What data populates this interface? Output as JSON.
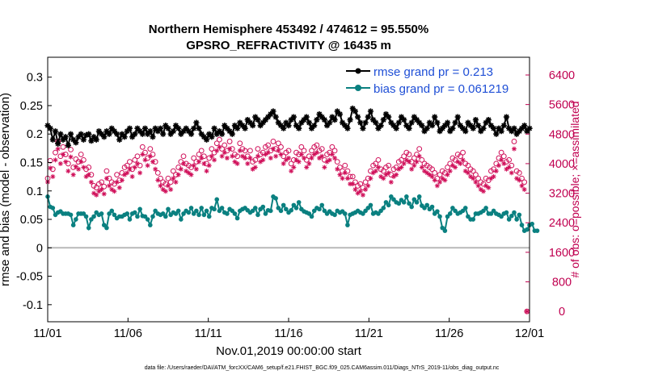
{
  "chart_data": {
    "type": "line",
    "title": "Northern Hemisphere 453492 / 474612 = 95.550%",
    "subtitle": "GPSRO_REFRACTIVITY @ 16435 m",
    "xlabel": "Nov.01,2019 00:00:00 start",
    "ylabel": "rmse and bias (model - observation)",
    "y2label": "# of obs: o=possible; ×=assimilated",
    "footnote": "data file: /Users/raeder/DAI/ATM_forcXX/CAM6_setup/f.e21.FHIST_BGC.f09_025.CAM6assim.011/Diags_NTrS_2019-11/obs_diag_output.nc",
    "xlim": [
      0,
      30
    ],
    "ylim": [
      -0.13,
      0.335
    ],
    "y2lim": [
      -280,
      6880
    ],
    "x_tick_values": [
      0,
      5,
      10,
      15,
      20,
      25,
      30
    ],
    "x_tick_labels": [
      "11/01",
      "11/06",
      "11/11",
      "11/16",
      "11/21",
      "11/26",
      "12/01"
    ],
    "y_ticks": [
      "0.3",
      "0.25",
      "0.2",
      "0.15",
      "0.1",
      "0.05",
      "0",
      "-0.05",
      "-0.1"
    ],
    "y_tick_values": [
      0.3,
      0.25,
      0.2,
      0.15,
      0.1,
      0.05,
      0,
      -0.05,
      -0.1
    ],
    "y2_ticks": [
      "6400",
      "5600",
      "4800",
      "4000",
      "3200",
      "2400",
      "1600",
      "800",
      "0"
    ],
    "y2_tick_values": [
      6400,
      5600,
      4800,
      4000,
      3200,
      2400,
      1600,
      800,
      0
    ],
    "legend": [
      {
        "label": "rmse grand pr = 0.213",
        "color": "#000000"
      },
      {
        "label": "bias grand pr = 0.061219",
        "color": "#0a8080"
      }
    ],
    "colors": {
      "rmse": "#000000",
      "bias": "#0a8080",
      "counts": "#d0105a",
      "zero_line": "#b8b8b8"
    },
    "series": [
      {
        "name": "rmse",
        "values": [
          0.215,
          0.21,
          0.19,
          0.205,
          0.183,
          0.2,
          0.19,
          0.195,
          0.18,
          0.2,
          0.19,
          0.185,
          0.195,
          0.2,
          0.19,
          0.198,
          0.2,
          0.188,
          0.195,
          0.19,
          0.205,
          0.2,
          0.195,
          0.205,
          0.2,
          0.21,
          0.205,
          0.2,
          0.19,
          0.2,
          0.195,
          0.205,
          0.21,
          0.195,
          0.2,
          0.21,
          0.205,
          0.2,
          0.21,
          0.2,
          0.205,
          0.195,
          0.21,
          0.205,
          0.21,
          0.2,
          0.215,
          0.21,
          0.2,
          0.205,
          0.215,
          0.21,
          0.2,
          0.205,
          0.21,
          0.205,
          0.2,
          0.21,
          0.22,
          0.21,
          0.2,
          0.195,
          0.19,
          0.2,
          0.195,
          0.21,
          0.2,
          0.205,
          0.2,
          0.215,
          0.21,
          0.205,
          0.2,
          0.215,
          0.21,
          0.22,
          0.215,
          0.21,
          0.225,
          0.22,
          0.215,
          0.23,
          0.225,
          0.215,
          0.22,
          0.225,
          0.23,
          0.235,
          0.24,
          0.23,
          0.22,
          0.215,
          0.21,
          0.22,
          0.215,
          0.225,
          0.23,
          0.215,
          0.21,
          0.22,
          0.225,
          0.23,
          0.22,
          0.21,
          0.215,
          0.225,
          0.235,
          0.23,
          0.225,
          0.215,
          0.22,
          0.23,
          0.225,
          0.24,
          0.235,
          0.22,
          0.215,
          0.21,
          0.225,
          0.245,
          0.24,
          0.23,
          0.22,
          0.21,
          0.22,
          0.23,
          0.24,
          0.225,
          0.22,
          0.21,
          0.215,
          0.225,
          0.235,
          0.23,
          0.22,
          0.215,
          0.21,
          0.22,
          0.23,
          0.225,
          0.215,
          0.21,
          0.22,
          0.23,
          0.225,
          0.22,
          0.215,
          0.205,
          0.21,
          0.22,
          0.215,
          0.23,
          0.22,
          0.205,
          0.21,
          0.215,
          0.22,
          0.205,
          0.21,
          0.22,
          0.23,
          0.215,
          0.21,
          0.205,
          0.22,
          0.215,
          0.21,
          0.225,
          0.215,
          0.205,
          0.21,
          0.22,
          0.225,
          0.215,
          0.21,
          0.2,
          0.21,
          0.205,
          0.215,
          0.23,
          0.21,
          0.205,
          0.21,
          0.2,
          0.205,
          0.21,
          0.215,
          0.205,
          0.21
        ]
      },
      {
        "name": "bias",
        "values": [
          0.09,
          0.072,
          0.07,
          0.058,
          0.062,
          0.064,
          0.06,
          0.06,
          0.06,
          0.058,
          0.04,
          0.05,
          0.06,
          0.06,
          0.06,
          0.055,
          0.035,
          0.05,
          0.055,
          0.062,
          0.058,
          0.06,
          0.04,
          0.035,
          0.06,
          0.065,
          0.058,
          0.052,
          0.055,
          0.055,
          0.058,
          0.06,
          0.05,
          0.06,
          0.062,
          0.055,
          0.068,
          0.056,
          0.055,
          0.05,
          0.04,
          0.055,
          0.065,
          0.06,
          0.058,
          0.06,
          0.055,
          0.068,
          0.058,
          0.062,
          0.06,
          0.065,
          0.05,
          0.06,
          0.065,
          0.062,
          0.07,
          0.06,
          0.065,
          0.058,
          0.07,
          0.058,
          0.065,
          0.055,
          0.07,
          0.068,
          0.085,
          0.065,
          0.07,
          0.062,
          0.06,
          0.068,
          0.065,
          0.06,
          0.052,
          0.065,
          0.068,
          0.07,
          0.066,
          0.062,
          0.065,
          0.07,
          0.058,
          0.068,
          0.072,
          0.06,
          0.066,
          0.065,
          0.09,
          0.087,
          0.07,
          0.065,
          0.075,
          0.068,
          0.062,
          0.066,
          0.075,
          0.07,
          0.08,
          0.068,
          0.064,
          0.062,
          0.06,
          0.055,
          0.065,
          0.07,
          0.068,
          0.075,
          0.065,
          0.06,
          0.064,
          0.06,
          0.058,
          0.065,
          0.062,
          0.064,
          0.06,
          0.04,
          0.058,
          0.06,
          0.062,
          0.065,
          0.062,
          0.06,
          0.065,
          0.07,
          0.075,
          0.06,
          0.062,
          0.06,
          0.065,
          0.07,
          0.08,
          0.075,
          0.09,
          0.085,
          0.08,
          0.078,
          0.084,
          0.08,
          0.09,
          0.078,
          0.072,
          0.085,
          0.08,
          0.09,
          0.074,
          0.07,
          0.075,
          0.068,
          0.072,
          0.06,
          0.064,
          0.055,
          0.035,
          0.03,
          0.055,
          0.06,
          0.07,
          0.065,
          0.06,
          0.062,
          0.065,
          0.07,
          0.055,
          0.05,
          0.05,
          0.06,
          0.06,
          0.062,
          0.065,
          0.07,
          0.06,
          0.06,
          0.065,
          0.06,
          0.058,
          0.055,
          0.06,
          0.062,
          0.05,
          0.056,
          0.062,
          0.05,
          0.058,
          0.04,
          0.03,
          0.032,
          0.04,
          0.042,
          0.03,
          0.03
        ]
      },
      {
        "name": "possible",
        "values": [
          3600,
          4080,
          3850,
          4300,
          4600,
          4200,
          4450,
          4250,
          4000,
          4380,
          3900,
          4120,
          4050,
          4250,
          4100,
          3850,
          3900,
          3700,
          3400,
          3350,
          3450,
          3500,
          3380,
          3800,
          3600,
          3500,
          3450,
          3700,
          3550,
          3750,
          3900,
          3950,
          4050,
          3850,
          4100,
          4200,
          3950,
          4450,
          4300,
          4150,
          4400,
          4250,
          4050,
          3750,
          3600,
          3500,
          3450,
          3600,
          3500,
          3800,
          3700,
          3900,
          4050,
          4200,
          4000,
          3950,
          3900,
          4150,
          4050,
          4250,
          4350,
          4200,
          4000,
          4150,
          4400,
          4300,
          4550,
          4650,
          4400,
          4500,
          4350,
          4600,
          4400,
          4250,
          4200,
          4550,
          4400,
          4350,
          4200,
          4350,
          4050,
          4100,
          4400,
          4250,
          4300,
          4450,
          4500,
          4350,
          4600,
          4400,
          4550,
          4450,
          4200,
          4300,
          4350,
          4000,
          4100,
          4300,
          4250,
          4450,
          4350,
          4100,
          4200,
          4350,
          4450,
          4500,
          4350,
          4400,
          4100,
          4250,
          4300,
          4450,
          4350,
          4050,
          3900,
          3800,
          3950,
          3800,
          3650,
          3650,
          3500,
          3400,
          3450,
          3350,
          3500,
          3600,
          3800,
          3950,
          4000,
          4100,
          3850,
          3800,
          3900,
          3950,
          3700,
          3850,
          3900,
          4050,
          4100,
          4200,
          4300,
          4250,
          4050,
          4150,
          4250,
          4400,
          4100,
          4000,
          3950,
          3900,
          3850,
          3750,
          3600,
          3700,
          3800,
          3750,
          3900,
          4000,
          4150,
          4100,
          4250,
          4200,
          4300,
          4000,
          3950,
          3850,
          3800,
          3700,
          3600,
          3500,
          3450,
          3600,
          3550,
          3800,
          3850,
          4000,
          4150,
          4300,
          4200,
          4050,
          4100,
          3950,
          4600,
          3800,
          3750,
          3600,
          3500,
          0
        ]
      },
      {
        "name": "assimilated",
        "values": [
          3500,
          3880,
          3650,
          4100,
          4400,
          4000,
          4250,
          4050,
          3800,
          4180,
          3700,
          3920,
          3850,
          4050,
          3900,
          3650,
          3700,
          3500,
          3200,
          3150,
          3250,
          3300,
          3180,
          3600,
          3400,
          3300,
          3250,
          3500,
          3350,
          3550,
          3700,
          3750,
          3850,
          3650,
          3900,
          4000,
          3750,
          4250,
          4100,
          3950,
          4200,
          4050,
          3850,
          3550,
          3400,
          3300,
          3250,
          3400,
          3300,
          3600,
          3500,
          3700,
          3850,
          4000,
          3800,
          3750,
          3700,
          3950,
          3850,
          4050,
          4150,
          4000,
          3800,
          3950,
          4200,
          4100,
          4350,
          4450,
          4200,
          4300,
          4150,
          4400,
          4200,
          4050,
          4000,
          4350,
          4200,
          4150,
          4000,
          4150,
          3850,
          3900,
          4200,
          4050,
          4100,
          4250,
          4300,
          4150,
          4400,
          4200,
          4350,
          4250,
          4000,
          4100,
          4150,
          3800,
          3900,
          4100,
          4050,
          4250,
          4150,
          3900,
          4000,
          4150,
          4250,
          4300,
          4150,
          4200,
          3900,
          4050,
          4100,
          4250,
          4150,
          3850,
          3700,
          3600,
          3750,
          3600,
          3450,
          3450,
          3300,
          3200,
          3250,
          3150,
          3300,
          3400,
          3600,
          3750,
          3800,
          3900,
          3650,
          3600,
          3700,
          3750,
          3500,
          3650,
          3700,
          3850,
          3900,
          4000,
          4100,
          4050,
          3850,
          3950,
          4050,
          4200,
          3900,
          3800,
          3750,
          3700,
          3650,
          3550,
          3400,
          3500,
          3600,
          3550,
          3700,
          3800,
          3950,
          3900,
          4050,
          4000,
          4100,
          3800,
          3750,
          3650,
          3600,
          3500,
          3400,
          3300,
          3250,
          3400,
          3350,
          3600,
          3650,
          3800,
          3950,
          4100,
          4000,
          3850,
          3900,
          3750,
          4400,
          3600,
          3550,
          3400,
          3300,
          0
        ]
      }
    ]
  }
}
